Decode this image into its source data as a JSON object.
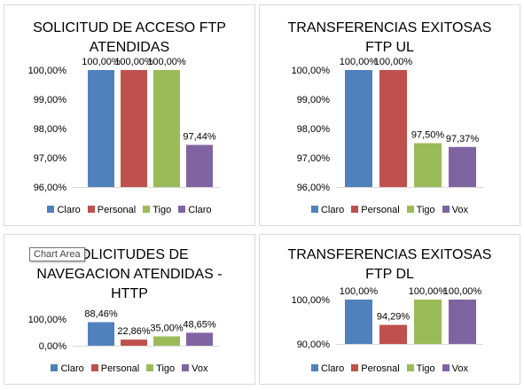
{
  "colors": {
    "blue": "#4f81bd",
    "red": "#c0504d",
    "green": "#9bbb59",
    "purple": "#8064a2"
  },
  "tooltip": {
    "text": "Chart Area"
  },
  "chart_data": [
    {
      "type": "bar",
      "title_lines": [
        "SOLICITUD DE ACCESO FTP",
        "ATENDIDAS"
      ],
      "categories": [
        "Claro",
        "Personal",
        "Tigo",
        "Claro"
      ],
      "values": [
        100.0,
        100.0,
        100.0,
        97.44
      ],
      "value_labels": [
        "100,00%",
        "100,00%",
        "100,00%",
        "97,44%"
      ],
      "ylim": [
        96,
        100
      ],
      "yticks": [
        "96,00%",
        "97,00%",
        "98,00%",
        "99,00%",
        "100,00%"
      ],
      "grid": false,
      "legend_position": "bottom"
    },
    {
      "type": "bar",
      "title_lines": [
        "TRANSFERENCIAS EXITOSAS",
        "FTP UL"
      ],
      "categories": [
        "Claro",
        "Personal",
        "Tigo",
        "Vox"
      ],
      "values": [
        100.0,
        100.0,
        97.5,
        97.37
      ],
      "value_labels": [
        "100,00%",
        "100,00%",
        "97,50%",
        "97,37%"
      ],
      "ylim": [
        96,
        100
      ],
      "yticks": [
        "96,00%",
        "97,00%",
        "98,00%",
        "99,00%",
        "100,00%"
      ],
      "grid": false,
      "legend_position": "bottom"
    },
    {
      "type": "bar",
      "title_lines": [
        "SOLICITUDES DE",
        "NAVEGACION ATENDIDAS -",
        "HTTP"
      ],
      "categories": [
        "Claro",
        "Personal",
        "Tigo",
        "Vox"
      ],
      "values": [
        88.46,
        22.86,
        35.0,
        48.65
      ],
      "value_labels": [
        "88,46%",
        "22,86%",
        "35,00%",
        "48,65%"
      ],
      "ylim": [
        0,
        100
      ],
      "yticks": [
        "0,00%",
        "100,00%"
      ],
      "grid": false,
      "legend_position": "bottom"
    },
    {
      "type": "bar",
      "title_lines": [
        "TRANSFERENCIAS EXITOSAS",
        "FTP DL"
      ],
      "categories": [
        "Claro",
        "Perosnal",
        "Tigo",
        "Vox"
      ],
      "values": [
        100.0,
        94.29,
        100.0,
        100.0
      ],
      "value_labels": [
        "100,00%",
        "94,29%",
        "100,00%",
        "100,00%"
      ],
      "ylim": [
        90,
        100
      ],
      "yticks": [
        "90,00%",
        "100,00%"
      ],
      "grid": false,
      "legend_position": "bottom"
    }
  ]
}
